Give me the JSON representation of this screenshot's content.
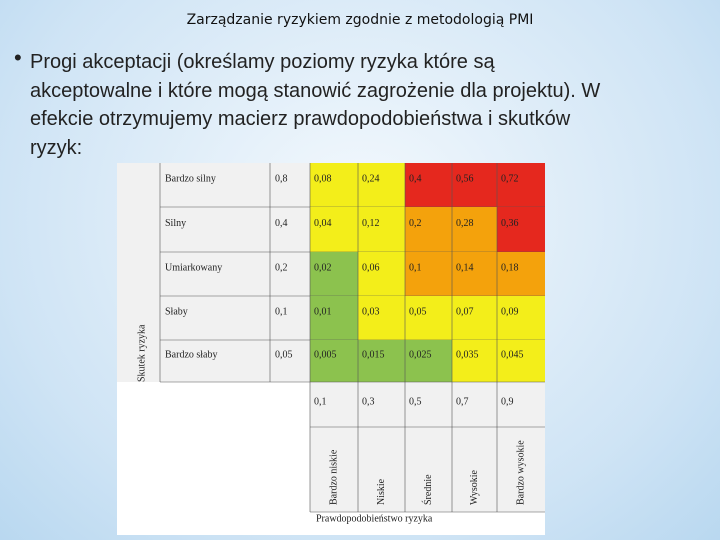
{
  "header": {
    "title": "Zarządzanie ryzykiem zgodnie z metodologią PMI"
  },
  "bullet": {
    "lines": [
      "Progi akceptacji (określamy poziomy ryzyka które są",
      "akceptowalne i które mogą stanowić zagrożenie dla projektu). W",
      "efekcie otrzymujemy macierz prawdopodobieństwa i skutków",
      "ryzyk:"
    ]
  },
  "matrix": {
    "impact_title": "Skutek ryzyka",
    "probability_title": "Prawdopodobieństwo ryzyka",
    "rows": [
      {
        "label": "Bardzo silny",
        "impact": "0,8",
        "cells": [
          "0,08",
          "0,24",
          "0,4",
          "0,56",
          "0,72"
        ],
        "colors": [
          "#f3ee1a",
          "#f3ee1a",
          "#e5281e",
          "#e5281e",
          "#e5281e"
        ]
      },
      {
        "label": "Silny",
        "impact": "0,4",
        "cells": [
          "0,04",
          "0,12",
          "0,2",
          "0,28",
          "0,36"
        ],
        "colors": [
          "#f3ee1a",
          "#f3ee1a",
          "#f4a20c",
          "#f4a20c",
          "#e5281e"
        ]
      },
      {
        "label": "Umiarkowany",
        "impact": "0,2",
        "cells": [
          "0,02",
          "0,06",
          "0,1",
          "0,14",
          "0,18"
        ],
        "colors": [
          "#8cc24e",
          "#f3ee1a",
          "#f4a20c",
          "#f4a20c",
          "#f4a20c"
        ]
      },
      {
        "label": "Słaby",
        "impact": "0,1",
        "cells": [
          "0,01",
          "0,03",
          "0,05",
          "0,07",
          "0,09"
        ],
        "colors": [
          "#8cc24e",
          "#f3ee1a",
          "#f3ee1a",
          "#f3ee1a",
          "#f3ee1a"
        ]
      },
      {
        "label": "Bardzo słaby",
        "impact": "0,05",
        "cells": [
          "0,005",
          "0,015",
          "0,025",
          "0,035",
          "0,045"
        ],
        "colors": [
          "#8cc24e",
          "#8cc24e",
          "#8cc24e",
          "#f3ee1a",
          "#f3ee1a"
        ]
      }
    ],
    "probabilities": [
      "0,1",
      "0,3",
      "0,5",
      "0,7",
      "0,9"
    ],
    "probability_labels": [
      "Bardzo niskie",
      "Niskie",
      "Średnie",
      "Wysokie",
      "Bardzo wysokie"
    ]
  }
}
